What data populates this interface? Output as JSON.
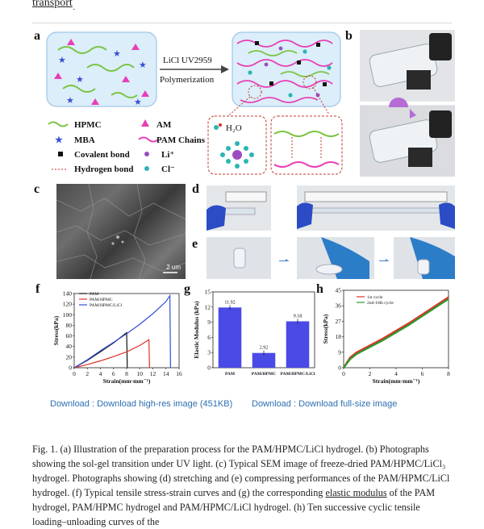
{
  "top_link": "transport",
  "panels": {
    "a": {
      "letter": "a",
      "arrow_text_1": "LiCl  UV2959",
      "arrow_text_2": "Polymerization",
      "legend": [
        "HPMC",
        "AM",
        "MBA",
        "PAM Chains",
        "Covalent bond",
        "Li⁺",
        "Hydrogen bond",
        "Cl⁻"
      ],
      "h2o": "H₂O"
    },
    "b": {
      "letter": "b"
    },
    "c": {
      "letter": "c",
      "scale": "2 um"
    },
    "d": {
      "letter": "d"
    },
    "e": {
      "letter": "e"
    },
    "f": {
      "letter": "f"
    },
    "g": {
      "letter": "g"
    },
    "h": {
      "letter": "h"
    }
  },
  "chart_data": [
    {
      "type": "line",
      "panel": "f",
      "xlabel": "Strain(mm·mm⁻¹)",
      "ylabel": "Stress(kPa)",
      "xlim": [
        0,
        16
      ],
      "ylim": [
        0,
        140
      ],
      "xticks": [
        0,
        2,
        4,
        6,
        8,
        10,
        12,
        14,
        16
      ],
      "yticks": [
        0,
        20,
        40,
        60,
        80,
        100,
        120,
        140
      ],
      "series": [
        {
          "name": "PAM",
          "color": "#111111",
          "x": [
            0,
            2,
            4,
            6,
            8,
            8.1
          ],
          "y": [
            0,
            14,
            30,
            47,
            66,
            0
          ]
        },
        {
          "name": "PAM/HPMC",
          "color": "#e0302a",
          "x": [
            0,
            2,
            4,
            6,
            8,
            10,
            11.4,
            11.5
          ],
          "y": [
            0,
            6,
            13,
            21,
            30,
            42,
            53,
            0
          ]
        },
        {
          "name": "PAM/HPMC/LiCl",
          "color": "#2f4fd6",
          "x": [
            0,
            2,
            4,
            6,
            8,
            10,
            12,
            14,
            14.6,
            14.7
          ],
          "y": [
            0,
            15,
            32,
            48,
            64,
            82,
            102,
            125,
            136,
            0
          ]
        }
      ]
    },
    {
      "type": "bar",
      "panel": "g",
      "ylabel": "Elastic Modulus (kPa)",
      "categories": [
        "PAM",
        "PAM/HPMC",
        "PAM/HPMC/LiCl"
      ],
      "values": [
        11.92,
        2.92,
        9.18
      ],
      "value_labels": [
        "11.92",
        "2.92",
        "9.18"
      ],
      "ylim": [
        0,
        15
      ],
      "yticks": [
        0,
        3,
        6,
        9,
        12,
        15
      ],
      "color": "#4a4ae6"
    },
    {
      "type": "line",
      "panel": "h",
      "xlabel": "Strain(mm·mm⁻¹)",
      "ylabel": "Stress(kPa)",
      "xlim": [
        0,
        8
      ],
      "ylim": [
        0,
        45
      ],
      "xticks": [
        0,
        2,
        4,
        6,
        8
      ],
      "yticks": [
        0,
        9,
        18,
        27,
        36,
        45
      ],
      "series": [
        {
          "name": "1st cycle",
          "color": "#e0302a",
          "x": [
            0,
            0.5,
            1,
            2,
            3,
            4,
            5,
            6,
            7,
            8
          ],
          "y": [
            0,
            6,
            9,
            13,
            17,
            21.5,
            26,
            31,
            36,
            41
          ]
        },
        {
          "name": "2nd-10th cycle",
          "color": "#2a9a2a",
          "x": [
            0,
            0.5,
            1,
            2,
            3,
            4,
            5,
            6,
            7,
            8
          ],
          "y": [
            0,
            5,
            8,
            12,
            16,
            20.5,
            25,
            30,
            35,
            40
          ]
        }
      ]
    }
  ],
  "downloads": {
    "left": "Download : Download high-res image (451KB)",
    "right": "Download : Download full-size image"
  },
  "caption": {
    "part1": "Fig. 1. (a) Illustration of the preparation process for the PAM/HPMC/LiCl hydrogel. (b) Photographs showing the sol-gel transition under UV light. (c) Typical SEM image of freeze-dried PAM/HPMC/LiCl₃ hydrogel. Photographs showing (d) stretching and (e) compressing performances of the PAM/HPMC/LiCl hydrogel. (f) Typical tensile stress-strain curves and (g) the corresponding ",
    "link": "elastic modulus",
    "part2": " of the PAM hydrogel, PAM/HPMC hydrogel and PAM/HPMC/LiCl hydrogel. (h) Ten successive cyclic tensile loading–unloading curves of the"
  },
  "colors": {
    "link": "#2c6fb1",
    "bar": "#4a4ae6",
    "box": "#dbeefa",
    "dashed": "#c0392b"
  }
}
